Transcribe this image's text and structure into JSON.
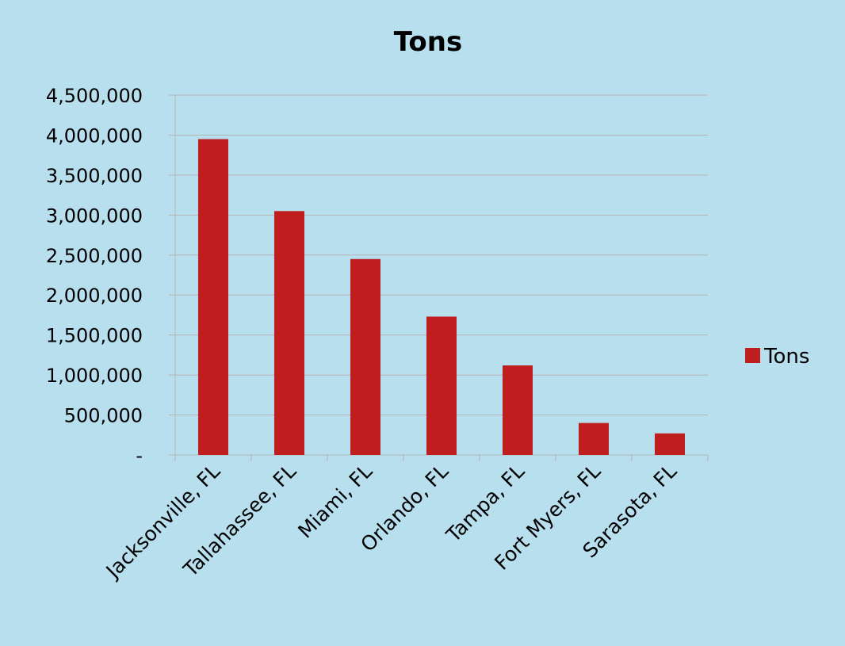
{
  "chart_data": {
    "type": "bar",
    "title": "Tons",
    "xlabel": "",
    "ylabel": "",
    "categories": [
      "Jacksonville, FL",
      "Tallahassee, FL",
      "Miami, FL",
      "Orlando, FL",
      "Tampa, FL",
      "Fort Myers, FL",
      "Sarasota, FL"
    ],
    "series": [
      {
        "name": "Tons",
        "color": "#be1e1e",
        "values": [
          3950000,
          3050000,
          2450000,
          1730000,
          1120000,
          400000,
          270000
        ]
      }
    ],
    "ylim": [
      0,
      4500000
    ],
    "yticks": [
      0,
      500000,
      1000000,
      1500000,
      2000000,
      2500000,
      3000000,
      3500000,
      4000000,
      4500000
    ],
    "ytick_labels": [
      "-",
      "500,000",
      "1,000,000",
      "1,500,000",
      "2,000,000",
      "2,500,000",
      "3,000,000",
      "3,500,000",
      "4,000,000",
      "4,500,000"
    ],
    "grid": true,
    "legend": "right",
    "background": "#b8dfee",
    "gridline_color": "#b4b4b4"
  }
}
